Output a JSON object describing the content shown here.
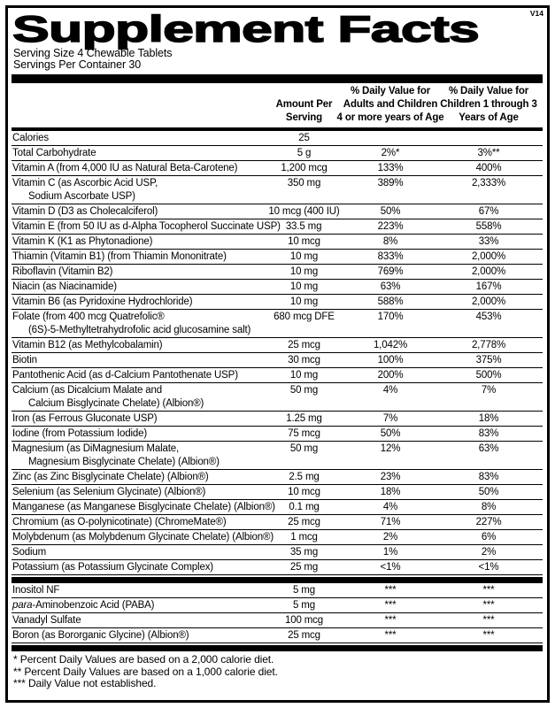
{
  "version_tag": "V14",
  "title": "Supplement Facts",
  "serving_info": {
    "serving_size": "Serving Size 4 Chewable Tablets",
    "servings_per_container": "Servings Per Container 30"
  },
  "table": {
    "columns": {
      "amount": [
        "Amount Per",
        "Serving"
      ],
      "adult_dv": [
        "% Daily Value for",
        "Adults and Children",
        "4 or more years of Age"
      ],
      "child_dv": [
        "% Daily Value for",
        "Children 1 through 3",
        "Years of Age"
      ]
    },
    "rows": [
      {
        "name": "Calories",
        "amount": "25",
        "adult_dv": "",
        "child_dv": ""
      },
      {
        "name": "Total Carbohydrate",
        "amount": "5 g",
        "adult_dv": "2%*",
        "child_dv": "3%**"
      },
      {
        "name": "Vitamin A (from 4,000 IU as Natural Beta-Carotene)",
        "amount": "1,200 mcg",
        "adult_dv": "133%",
        "child_dv": "400%"
      },
      {
        "name": "Vitamin C (as Ascorbic Acid USP,",
        "name2": "Sodium Ascorbate USP)",
        "amount": "350 mg",
        "adult_dv": "389%",
        "child_dv": "2,333%"
      },
      {
        "name": "Vitamin D (D3 as Cholecalciferol)",
        "amount": "10 mcg (400 IU)",
        "adult_dv": "50%",
        "child_dv": "67%"
      },
      {
        "name": "Vitamin E (from 50 IU as d-Alpha Tocopherol Succinate USP)",
        "amount": "33.5 mg",
        "adult_dv": "223%",
        "child_dv": "558%",
        "inline_amount": true
      },
      {
        "name": "Vitamin K (K1 as Phytonadione)",
        "amount": "10 mcg",
        "adult_dv": "8%",
        "child_dv": "33%"
      },
      {
        "name": "Thiamin (Vitamin B1) (from Thiamin Mononitrate)",
        "amount": "10 mg",
        "adult_dv": "833%",
        "child_dv": "2,000%"
      },
      {
        "name": "Riboflavin (Vitamin B2)",
        "amount": "10 mg",
        "adult_dv": "769%",
        "child_dv": "2,000%"
      },
      {
        "name": "Niacin (as Niacinamide)",
        "amount": "10 mg",
        "adult_dv": "63%",
        "child_dv": "167%"
      },
      {
        "name": "Vitamin B6 (as Pyridoxine Hydrochloride)",
        "amount": "10 mg",
        "adult_dv": "588%",
        "child_dv": "2,000%"
      },
      {
        "name": "Folate (from 400 mcg Quatrefolic®",
        "name2": "(6S)-5-Methyltetrahydrofolic acid glucosamine salt)",
        "amount": "680 mcg DFE",
        "adult_dv": "170%",
        "child_dv": "453%"
      },
      {
        "name": "Vitamin B12 (as Methylcobalamin)",
        "amount": "25 mcg",
        "adult_dv": "1,042%",
        "child_dv": "2,778%"
      },
      {
        "name": "Biotin",
        "amount": "30 mcg",
        "adult_dv": "100%",
        "child_dv": "375%"
      },
      {
        "name": "Pantothenic Acid (as d-Calcium Pantothenate USP)",
        "amount": "10 mg",
        "adult_dv": "200%",
        "child_dv": "500%"
      },
      {
        "name": "Calcium (as Dicalcium Malate and",
        "name2": "Calcium Bisglycinate Chelate) (Albion®)",
        "amount": "50 mg",
        "adult_dv": "4%",
        "child_dv": "7%"
      },
      {
        "name": "Iron (as Ferrous Gluconate USP)",
        "amount": "1.25 mg",
        "adult_dv": "7%",
        "child_dv": "18%"
      },
      {
        "name": "Iodine (from Potassium Iodide)",
        "amount": "75 mcg",
        "adult_dv": "50%",
        "child_dv": "83%"
      },
      {
        "name": "Magnesium (as DiMagnesium Malate,",
        "name2": "Magnesium Bisglycinate Chelate) (Albion®)",
        "amount": "50 mg",
        "adult_dv": "12%",
        "child_dv": "63%"
      },
      {
        "name": "Zinc (as Zinc Bisglycinate Chelate) (Albion®)",
        "amount": "2.5 mg",
        "adult_dv": "23%",
        "child_dv": "83%"
      },
      {
        "name": "Selenium (as Selenium Glycinate) (Albion®)",
        "amount": "10 mcg",
        "adult_dv": "18%",
        "child_dv": "50%"
      },
      {
        "name": "Manganese (as Manganese Bisglycinate Chelate) (Albion®)",
        "amount": "0.1 mg",
        "adult_dv": "4%",
        "child_dv": "8%"
      },
      {
        "name": "Chromium (as O-polynicotinate) (ChromeMate®)",
        "amount": "25 mcg",
        "adult_dv": "71%",
        "child_dv": "227%"
      },
      {
        "name": "Molybdenum (as Molybdenum Glycinate Chelate) (Albion®)",
        "amount": "1 mcg",
        "adult_dv": "2%",
        "child_dv": "6%"
      },
      {
        "name": "Sodium",
        "amount": "35 mg",
        "adult_dv": "1%",
        "child_dv": "2%"
      },
      {
        "name": "Potassium (as Potassium Glycinate Complex)",
        "amount": "25 mg",
        "adult_dv": "<1%",
        "child_dv": "<1%"
      }
    ],
    "secondary_rows": [
      {
        "name": "Inositol NF",
        "amount": "5 mg",
        "adult_dv": "***",
        "child_dv": "***"
      },
      {
        "italic_prefix": "para",
        "name": "-Aminobenzoic Acid (PABA)",
        "amount": "5 mg",
        "adult_dv": "***",
        "child_dv": "***"
      },
      {
        "name": "Vanadyl Sulfate",
        "amount": "100 mcg",
        "adult_dv": "***",
        "child_dv": "***"
      },
      {
        "name": "Boron (as Bororganic Glycine) (Albion®)",
        "amount": "25 mcg",
        "adult_dv": "***",
        "child_dv": "***"
      }
    ]
  },
  "footnotes": [
    "* Percent Daily Values are based on a 2,000 calorie diet.",
    "** Percent Daily Values are based on a 1,000 calorie diet.",
    "*** Daily Value not established."
  ],
  "colors": {
    "ink": "#000000",
    "background": "#ffffff"
  }
}
